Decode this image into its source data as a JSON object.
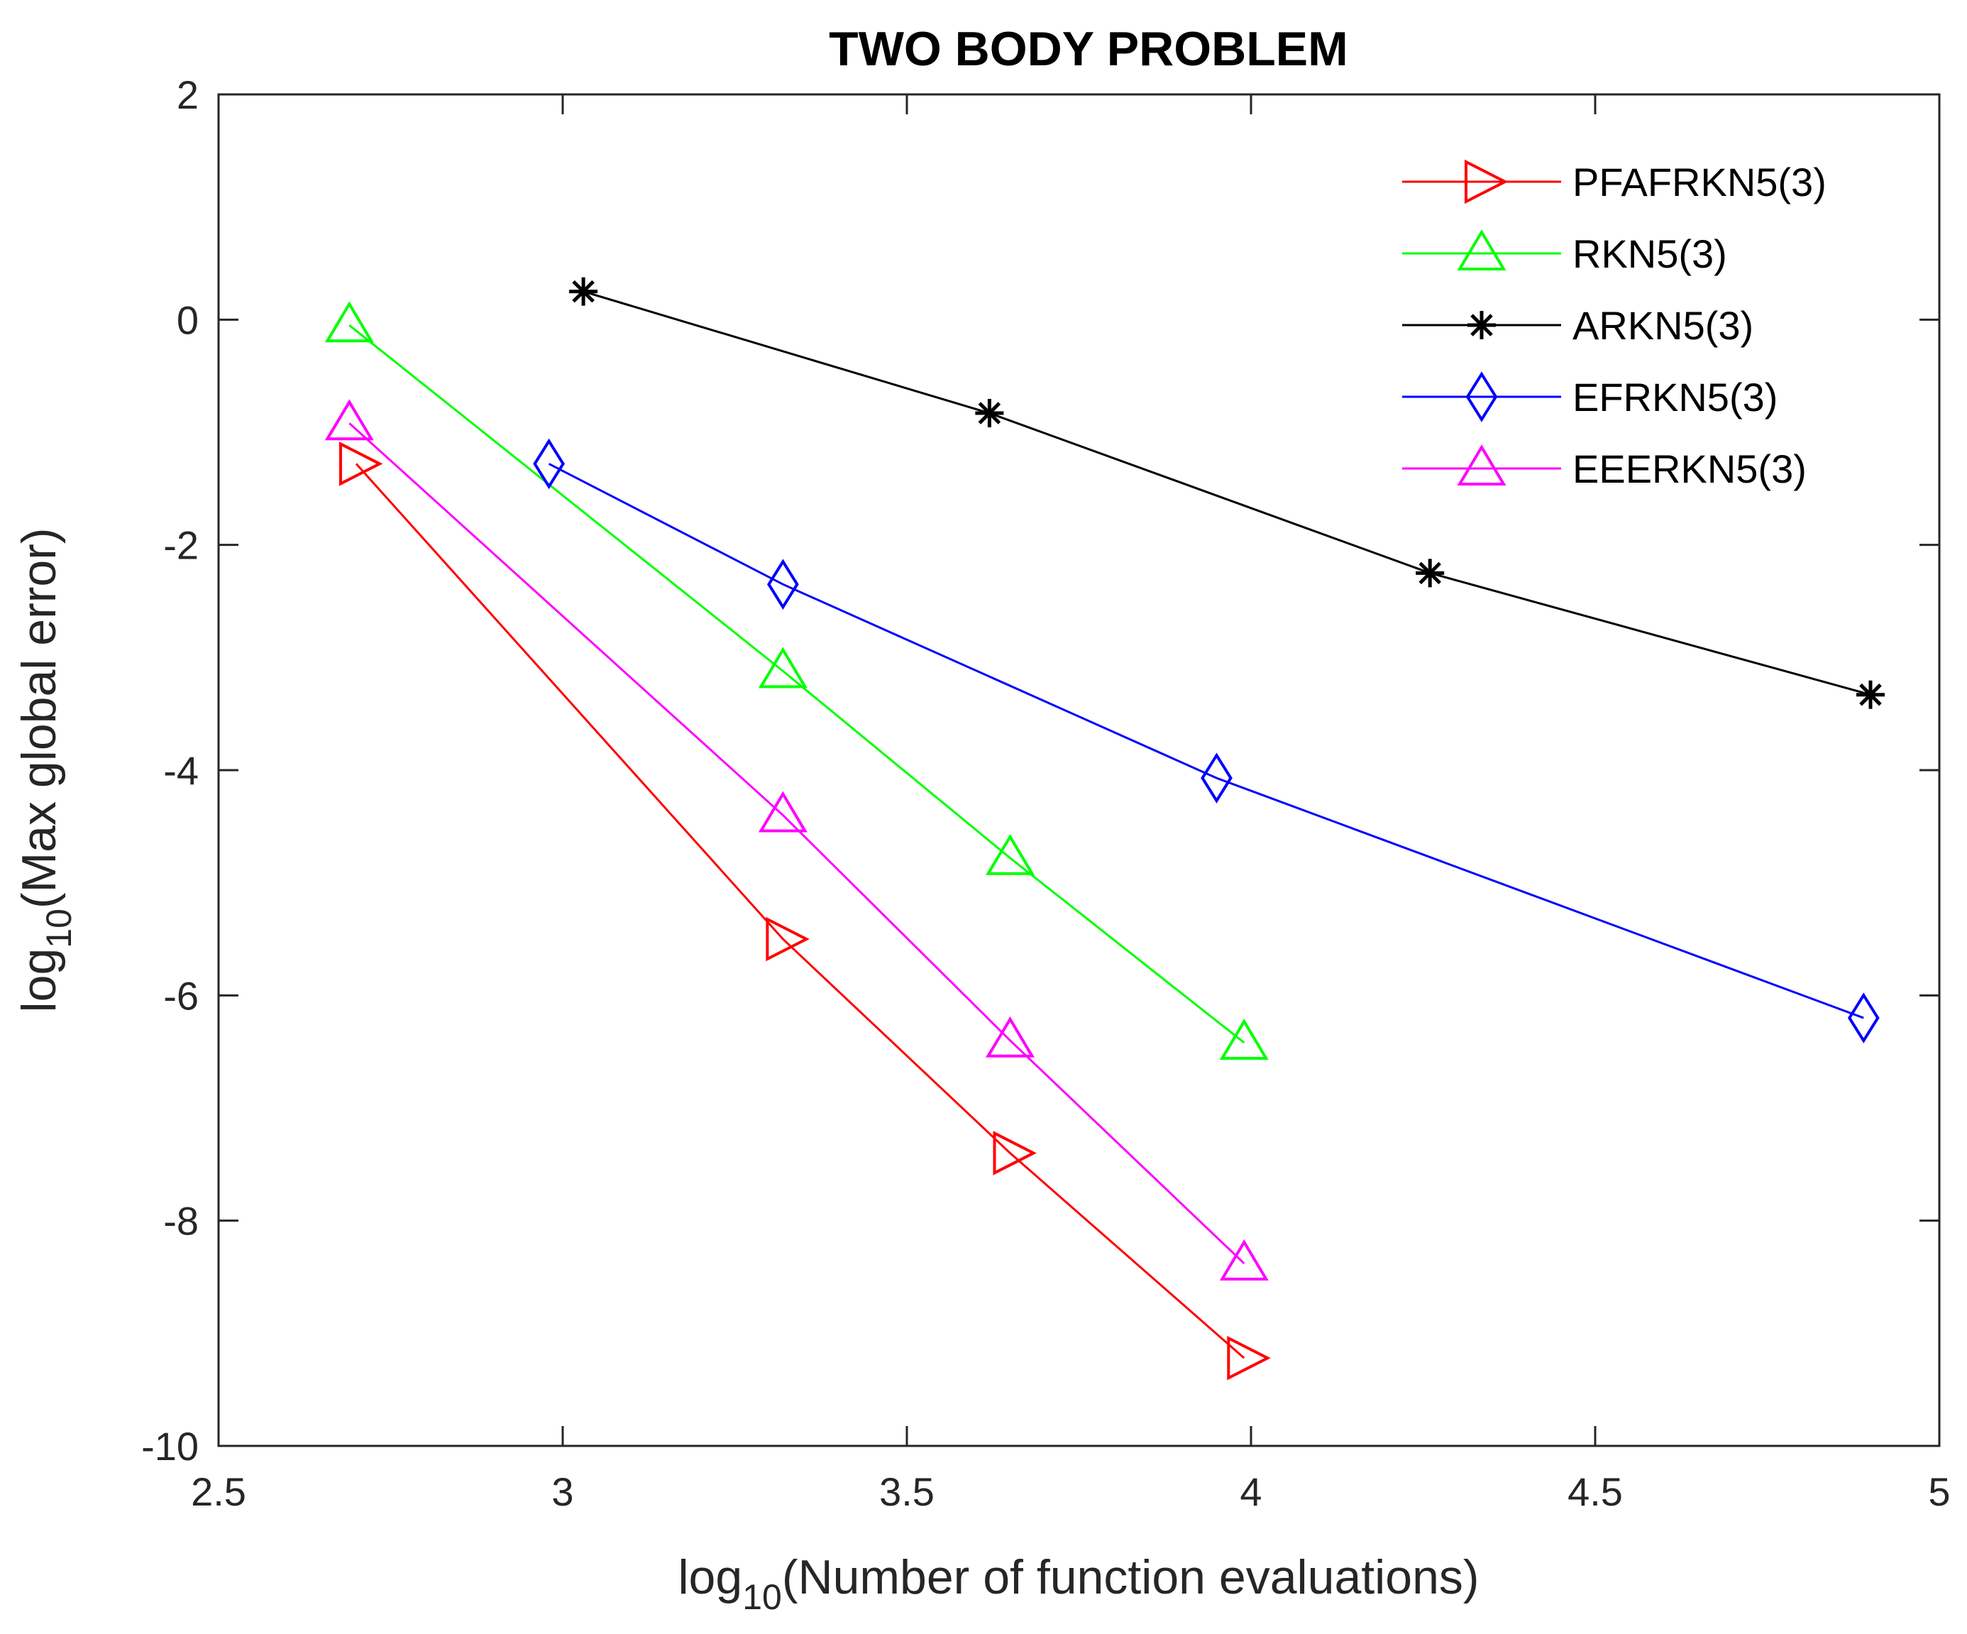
{
  "chart_data": {
    "type": "line",
    "title": "TWO BODY PROBLEM",
    "xlabel": {
      "prefix": "log",
      "subscript": "10",
      "text": "(Number of function evaluations)"
    },
    "ylabel": {
      "prefix": "log",
      "subscript": "10",
      "text": "(Max global error)"
    },
    "xlim": [
      2.5,
      5
    ],
    "ylim": [
      -10,
      2
    ],
    "xticks": [
      2.5,
      3,
      3.5,
      4,
      4.5,
      5
    ],
    "xtick_labels": [
      "2.5",
      "3",
      "3.5",
      "4",
      "4.5",
      "5"
    ],
    "yticks": [
      2,
      0,
      -2,
      -4,
      -6,
      -8,
      -10
    ],
    "ytick_labels": [
      "2",
      "0",
      "-2",
      "-4",
      "-6",
      "-8",
      "-10"
    ],
    "grid": false,
    "legend_position": "top-right",
    "series": [
      {
        "name": "PFAFRKN5(3)",
        "color": "#ff0000",
        "marker": "triangle-right",
        "x": [
          2.7,
          3.32,
          3.65,
          3.99
        ],
        "y": [
          -1.28,
          -5.5,
          -7.4,
          -9.22
        ]
      },
      {
        "name": "RKN5(3)",
        "color": "#00ff00",
        "marker": "triangle-up",
        "x": [
          2.69,
          3.32,
          3.65,
          3.99
        ],
        "y": [
          -0.05,
          -3.12,
          -4.78,
          -6.42
        ]
      },
      {
        "name": "ARKN5(3)",
        "color": "#000000",
        "marker": "asterisk",
        "x": [
          3.03,
          3.62,
          4.26,
          4.9
        ],
        "y": [
          0.25,
          -0.83,
          -2.25,
          -3.33
        ]
      },
      {
        "name": "EFRKN5(3)",
        "color": "#0000ff",
        "marker": "diamond",
        "x": [
          2.98,
          3.32,
          3.95,
          4.89
        ],
        "y": [
          -1.28,
          -2.35,
          -4.07,
          -6.2
        ]
      },
      {
        "name": "EEERKN5(3)",
        "color": "#ff00ff",
        "marker": "triangle-up",
        "x": [
          2.69,
          3.32,
          3.65,
          3.99
        ],
        "y": [
          -0.92,
          -4.4,
          -6.4,
          -8.38
        ]
      }
    ]
  }
}
